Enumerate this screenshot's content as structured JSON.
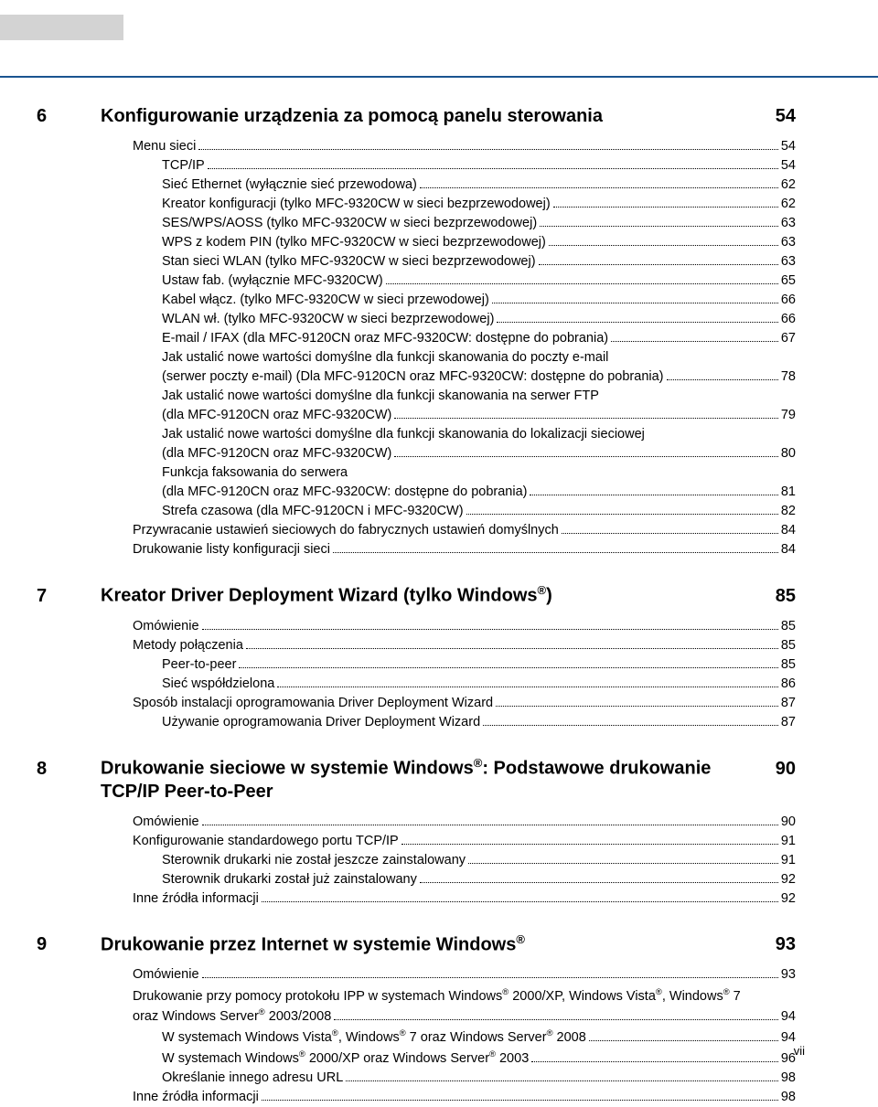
{
  "colors": {
    "accent": "#1a5490",
    "grey_bar": "#d3d3d3",
    "text": "#000000",
    "bg": "#ffffff"
  },
  "typography": {
    "title_size_pt": 15,
    "body_size_pt": 11,
    "font_family": "Arial"
  },
  "page_number": "vii",
  "sections": [
    {
      "num": "6",
      "title": "Konfigurowanie urządzenia za pomocą panelu sterowania",
      "page": "54",
      "entries": [
        {
          "indent": 0,
          "text": "Menu sieci",
          "page": "54"
        },
        {
          "indent": 1,
          "text": "TCP/IP",
          "page": "54"
        },
        {
          "indent": 1,
          "text": "Sieć Ethernet (wyłącznie sieć przewodowa)",
          "page": "62"
        },
        {
          "indent": 1,
          "text": "Kreator konfiguracji (tylko MFC-9320CW w sieci bezprzewodowej)",
          "page": "62"
        },
        {
          "indent": 1,
          "text": "SES/WPS/AOSS (tylko MFC-9320CW w sieci bezprzewodowej)",
          "page": "63"
        },
        {
          "indent": 1,
          "text": "WPS z kodem PIN (tylko MFC-9320CW w sieci bezprzewodowej)",
          "page": "63"
        },
        {
          "indent": 1,
          "text": "Stan sieci WLAN (tylko MFC-9320CW w sieci bezprzewodowej)",
          "page": "63"
        },
        {
          "indent": 1,
          "text": "Ustaw fab. (wyłącznie MFC-9320CW)",
          "page": "65"
        },
        {
          "indent": 1,
          "text": "Kabel włącz. (tylko MFC-9320CW w sieci przewodowej)",
          "page": "66"
        },
        {
          "indent": 1,
          "text": "WLAN wł. (tylko MFC-9320CW w sieci bezprzewodowej)",
          "page": "66"
        },
        {
          "indent": 1,
          "text": "E-mail / IFAX (dla MFC-9120CN oraz MFC-9320CW: dostępne do pobrania)",
          "page": "67"
        },
        {
          "indent": 1,
          "multiline": true,
          "lines": [
            "Jak ustalić nowe wartości domyślne dla funkcji skanowania do poczty e-mail",
            "(serwer poczty e-mail) (Dla MFC-9120CN oraz MFC-9320CW: dostępne do pobrania)"
          ],
          "page": "78"
        },
        {
          "indent": 1,
          "multiline": true,
          "lines": [
            "Jak ustalić nowe wartości domyślne dla funkcji skanowania na serwer FTP",
            "(dla MFC-9120CN oraz MFC-9320CW)"
          ],
          "page": "79"
        },
        {
          "indent": 1,
          "multiline": true,
          "lines": [
            "Jak ustalić nowe wartości domyślne dla funkcji skanowania do lokalizacji sieciowej",
            "(dla MFC-9120CN oraz MFC-9320CW)"
          ],
          "page": "80"
        },
        {
          "indent": 1,
          "multiline": true,
          "lines": [
            "Funkcja faksowania do serwera",
            "(dla MFC-9120CN oraz MFC-9320CW: dostępne do pobrania)"
          ],
          "page": "81"
        },
        {
          "indent": 1,
          "text": "Strefa czasowa (dla MFC-9120CN i MFC-9320CW)",
          "page": "82"
        },
        {
          "indent": 0,
          "text": "Przywracanie ustawień sieciowych do fabrycznych ustawień domyślnych",
          "page": "84"
        },
        {
          "indent": 0,
          "text": "Drukowanie listy konfiguracji sieci",
          "page": "84"
        }
      ]
    },
    {
      "num": "7",
      "title_html": "Kreator Driver Deployment Wizard (tylko Windows<sup>®</sup>)",
      "page": "85",
      "entries": [
        {
          "indent": 0,
          "text": "Omówienie",
          "page": "85"
        },
        {
          "indent": 0,
          "text": "Metody połączenia",
          "page": "85"
        },
        {
          "indent": 1,
          "text": "Peer-to-peer",
          "page": "85"
        },
        {
          "indent": 1,
          "text": "Sieć współdzielona",
          "page": "86"
        },
        {
          "indent": 0,
          "text": "Sposób instalacji oprogramowania Driver Deployment Wizard",
          "page": "87"
        },
        {
          "indent": 1,
          "text": "Używanie oprogramowania Driver Deployment Wizard",
          "page": "87"
        }
      ]
    },
    {
      "num": "8",
      "title_html": "Drukowanie sieciowe w systemie Windows<sup>®</sup>: Podstawowe drukowanie TCP/IP Peer-to-Peer",
      "page": "90",
      "entries": [
        {
          "indent": 0,
          "text": "Omówienie",
          "page": "90"
        },
        {
          "indent": 0,
          "text": "Konfigurowanie standardowego portu TCP/IP",
          "page": "91"
        },
        {
          "indent": 1,
          "text": "Sterownik drukarki nie został jeszcze zainstalowany",
          "page": "91"
        },
        {
          "indent": 1,
          "text": "Sterownik drukarki został już zainstalowany",
          "page": "92"
        },
        {
          "indent": 0,
          "text": "Inne źródła informacji",
          "page": "92"
        }
      ]
    },
    {
      "num": "9",
      "title_html": "Drukowanie przez Internet w systemie Windows<sup>®</sup>",
      "page": "93",
      "entries": [
        {
          "indent": 0,
          "text": "Omówienie",
          "page": "93"
        },
        {
          "indent": 0,
          "multiline": true,
          "lines_html": [
            "Drukowanie przy pomocy protokołu IPP w systemach Windows<sup>®</sup> 2000/XP, Windows Vista<sup>®</sup>, Windows<sup>®</sup> 7",
            "oraz Windows Server<sup>®</sup> 2003/2008"
          ],
          "page": "94"
        },
        {
          "indent": 1,
          "text_html": "W systemach Windows Vista<sup>®</sup>, Windows<sup>®</sup> 7 oraz Windows Server<sup>®</sup> 2008",
          "page": "94"
        },
        {
          "indent": 1,
          "text_html": "W systemach Windows<sup>®</sup> 2000/XP oraz Windows Server<sup>®</sup> 2003",
          "page": "96"
        },
        {
          "indent": 1,
          "text": "Określanie innego adresu URL",
          "page": "98"
        },
        {
          "indent": 0,
          "text": "Inne źródła informacji",
          "page": "98"
        }
      ]
    }
  ]
}
